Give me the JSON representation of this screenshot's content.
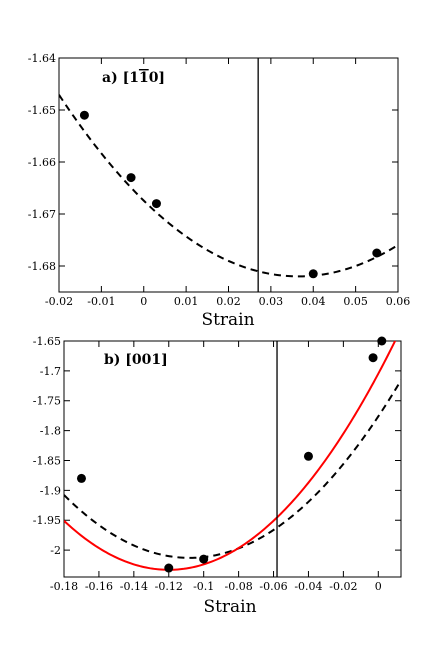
{
  "chart_data": [
    {
      "type": "scatter",
      "title": "a) [1",
      "title_overbar": "1",
      "title_suffix": "0]",
      "xlabel": "Strain",
      "ylabel": "",
      "xlim": [
        -0.02,
        0.06
      ],
      "ylim": [
        -1.685,
        -1.64
      ],
      "xticks": [
        -0.02,
        -0.01,
        0,
        0.01,
        0.02,
        0.03,
        0.04,
        0.05,
        0.06
      ],
      "xtick_labels": [
        "-0.02",
        "-0.01",
        "0",
        "0.01",
        "0.02",
        "0.03",
        "0.04",
        "0.05",
        "0.06"
      ],
      "yticks": [
        -1.64,
        -1.65,
        -1.66,
        -1.67,
        -1.68
      ],
      "ytick_labels": [
        "-1.64",
        "-1.65",
        "-1.66",
        "-1.67",
        "-1.68"
      ],
      "grid": false,
      "vertical_line_x": 0.027,
      "points": {
        "x": [
          -0.014,
          -0.003,
          0.003,
          0.04,
          0.055
        ],
        "y": [
          -1.651,
          -1.663,
          -1.668,
          -1.6815,
          -1.6775
        ]
      },
      "fits": [
        {
          "style": "dashed",
          "color": "#000000",
          "form": "quadratic",
          "a": 10.94,
          "x0": 0.0365,
          "y0": -1.682
        }
      ]
    },
    {
      "type": "scatter",
      "title": "b) [001]",
      "xlabel": "Strain",
      "ylabel": "",
      "xlim": [
        -0.18,
        0.013
      ],
      "ylim": [
        -2.045,
        -1.65
      ],
      "xticks": [
        -0.18,
        -0.16,
        -0.14,
        -0.12,
        -0.1,
        -0.08,
        -0.06,
        -0.04,
        -0.02,
        0
      ],
      "xtick_labels": [
        "-0.18",
        "-0.16",
        "-0.14",
        "-0.12",
        "-0.1",
        "-0.08",
        "-0.06",
        "-0.04",
        "-0.02",
        "0"
      ],
      "yticks": [
        -1.65,
        -1.7,
        -1.75,
        -1.8,
        -1.85,
        -1.9,
        -1.95,
        -2
      ],
      "ytick_labels": [
        "-1.65",
        "-1.7",
        "-1.75",
        "-1.8",
        "-1.85",
        "-1.9",
        "-1.95",
        "-2"
      ],
      "grid": false,
      "vertical_line_x": -0.058,
      "points": {
        "x": [
          -0.17,
          -0.12,
          -0.1,
          -0.04,
          -0.003,
          0.002
        ],
        "y": [
          -1.88,
          -2.03,
          -2.015,
          -1.843,
          -1.678,
          -1.65
        ]
      },
      "fits": [
        {
          "style": "dashed",
          "color": "#000000",
          "form": "quadratic",
          "a": 20.3,
          "x0": -0.108,
          "y0": -2.013
        },
        {
          "style": "solid",
          "color": "#ff0000",
          "form": "quadratic",
          "a": 22.8,
          "x0": -0.12,
          "y0": -2.033
        }
      ]
    }
  ]
}
